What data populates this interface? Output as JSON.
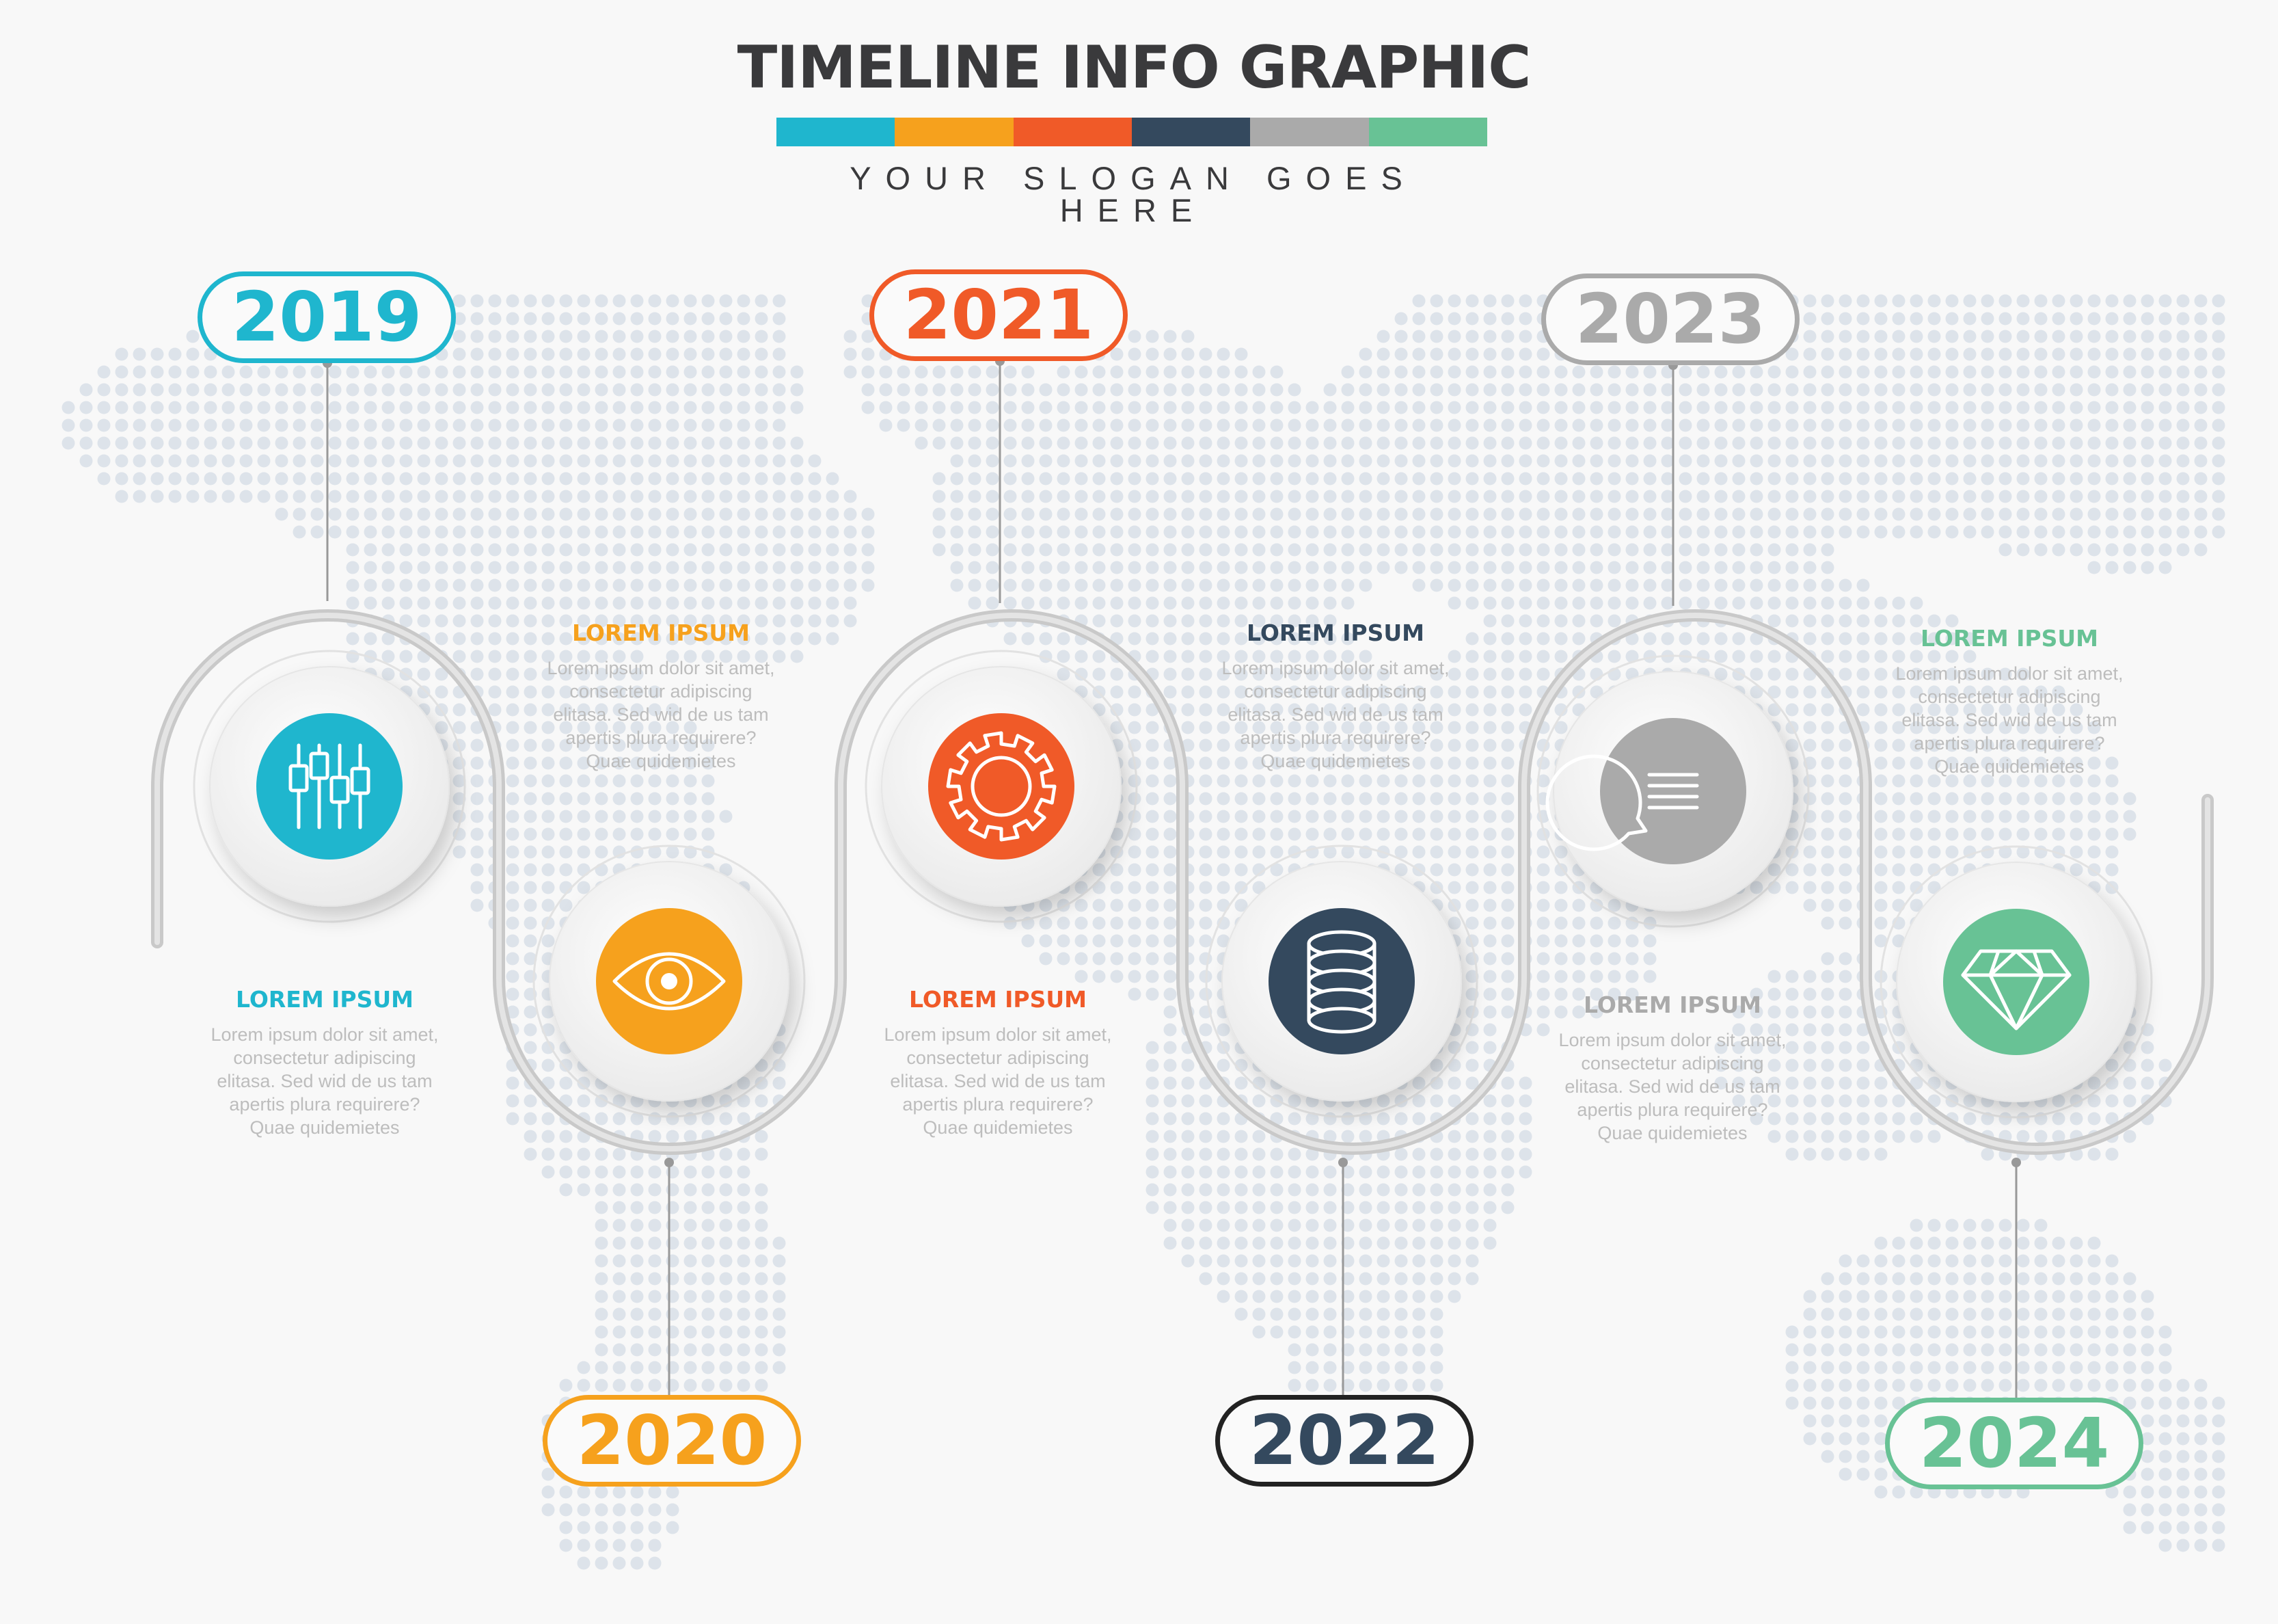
{
  "title": "TIMELINE INFO GRAPHIC",
  "slogan": "YOUR SLOGAN GOES HERE",
  "palette": {
    "teal": "#1fb6ce",
    "orange": "#f6a11d",
    "red": "#f05a28",
    "navy": "#34495e",
    "gray": "#aaaaaa",
    "green": "#68c295",
    "track": "#d6d6d6",
    "map_dots": "#dde3ea"
  },
  "color_bar": [
    "#1fb6ce",
    "#f6a11d",
    "#f05a28",
    "#34495e",
    "#aaaaaa",
    "#68c295"
  ],
  "milestones": [
    {
      "year": "2019",
      "icon": "equalizer-icon",
      "color": "#1fb6ce",
      "heading": "LOREM IPSUM",
      "text": [
        "Lorem ipsum dolor sit amet,",
        "consectetur adipiscing",
        "elitasa. Sed wid de us tam",
        "apertis plura requirere?",
        "Quae quidemietes"
      ]
    },
    {
      "year": "2020",
      "icon": "eye-icon",
      "color": "#f6a11d",
      "heading": "LOREM IPSUM",
      "text": [
        "Lorem ipsum dolor sit amet,",
        "consectetur adipiscing",
        "elitasa. Sed wid de us tam",
        "apertis plura requirere?",
        "Quae quidemietes"
      ]
    },
    {
      "year": "2021",
      "icon": "gear-icon",
      "color": "#f05a28",
      "heading": "LOREM IPSUM",
      "text": [
        "Lorem ipsum dolor sit amet,",
        "consectetur adipiscing",
        "elitasa. Sed wid de us tam",
        "apertis plura requirere?",
        "Quae quidemietes"
      ]
    },
    {
      "year": "2022",
      "icon": "database-icon",
      "color": "#34495e",
      "heading": "LOREM IPSUM",
      "text": [
        "Lorem ipsum dolor sit amet,",
        "consectetur adipiscing",
        "elitasa. Sed wid de us tam",
        "apertis plura requirere?",
        "Quae quidemietes"
      ]
    },
    {
      "year": "2023",
      "icon": "chat-bubble-icon",
      "color": "#aaaaaa",
      "heading": "LOREM IPSUM",
      "text": [
        "Lorem ipsum dolor sit amet,",
        "consectetur adipiscing",
        "elitasa. Sed wid de us tam",
        "apertis plura requirere?",
        "Quae quidemietes"
      ]
    },
    {
      "year": "2024",
      "icon": "diamond-icon",
      "color": "#68c295",
      "heading": "LOREM IPSUM",
      "text": [
        "Lorem ipsum dolor sit amet,",
        "consectetur adipiscing",
        "elitasa. Sed wid de us tam",
        "apertis plura requirere?",
        "Quae quidemietes"
      ]
    }
  ]
}
